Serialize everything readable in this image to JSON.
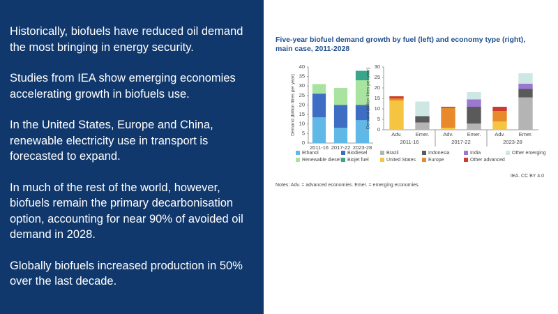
{
  "slide": {
    "paragraphs": [
      "Historically, biofuels have reduced oil demand the most bringing in energy security.",
      "Studies from IEA show emerging economies accelerating growth in biofuels use.",
      "In the United States, Europe and China, renewable electricity use in transport is forecasted to expand.",
      "In much of the rest of the world, however, biofuels remain the primary decarbonisation option, accounting for near 90% of avoided oil demand in 2028.",
      "Globally biofuels increased production in 50% over the last decade."
    ],
    "figure_title": "Five-year biofuel demand growth by fuel (left) and economy type (right), main case, 2011-2028",
    "credit": "IEA. CC BY 4.0",
    "notes": "Notes: Adv. = advanced economies. Emer. = emerging economies."
  },
  "chart_data": [
    {
      "type": "stacked_bar",
      "y_label": "Demand (billion litres per year)",
      "categories": [
        "2011-16",
        "2017-22",
        "2023-28"
      ],
      "series": [
        {
          "name": "Ethanol",
          "color": "#5fb8e6",
          "values": [
            13.5,
            8,
            12
          ]
        },
        {
          "name": "Biodiesel",
          "color": "#3d6ec4",
          "values": [
            12.5,
            12,
            8
          ]
        },
        {
          "name": "Renewable diesel",
          "color": "#a8e3a0",
          "values": [
            5,
            9,
            13
          ]
        },
        {
          "name": "Biojet fuel",
          "color": "#3aa58a",
          "values": [
            0,
            0,
            5
          ]
        }
      ],
      "ylim": [
        0,
        40
      ],
      "yticks": [
        0,
        5,
        10,
        15,
        20,
        25,
        30,
        35,
        40
      ]
    },
    {
      "type": "stacked_bar",
      "y_label": "Demand (billion litres per year)",
      "categories": [
        "Adv.",
        "Emer.",
        "Adv.",
        "Emer.",
        "Adv.",
        "Emer."
      ],
      "group_labels": [
        "2011-16",
        "2017-22",
        "2023-28"
      ],
      "series": [
        {
          "name": "Brazil",
          "color": "#b4b4b4",
          "values": [
            0,
            3.5,
            0,
            3,
            0,
            15.5
          ]
        },
        {
          "name": "Indonesia",
          "color": "#5a5a5a",
          "values": [
            0,
            3,
            0,
            8,
            0,
            4
          ]
        },
        {
          "name": "India",
          "color": "#9a78d0",
          "values": [
            0,
            0,
            0,
            3.5,
            0,
            2.5
          ]
        },
        {
          "name": "Other emerging",
          "color": "#cde8e4",
          "values": [
            0,
            7,
            0,
            3.5,
            0,
            5
          ]
        },
        {
          "name": "United States",
          "color": "#f5c542",
          "values": [
            14,
            0,
            1,
            0,
            4,
            0
          ]
        },
        {
          "name": "Europe",
          "color": "#e8892c",
          "values": [
            1,
            0,
            9.5,
            0,
            5,
            0
          ]
        },
        {
          "name": "Other advanced",
          "color": "#cc3b2b",
          "values": [
            1,
            0,
            0.5,
            0,
            2,
            0
          ]
        }
      ],
      "ylim": [
        0,
        30
      ],
      "yticks": [
        0,
        5,
        10,
        15,
        20,
        25,
        30
      ]
    }
  ]
}
